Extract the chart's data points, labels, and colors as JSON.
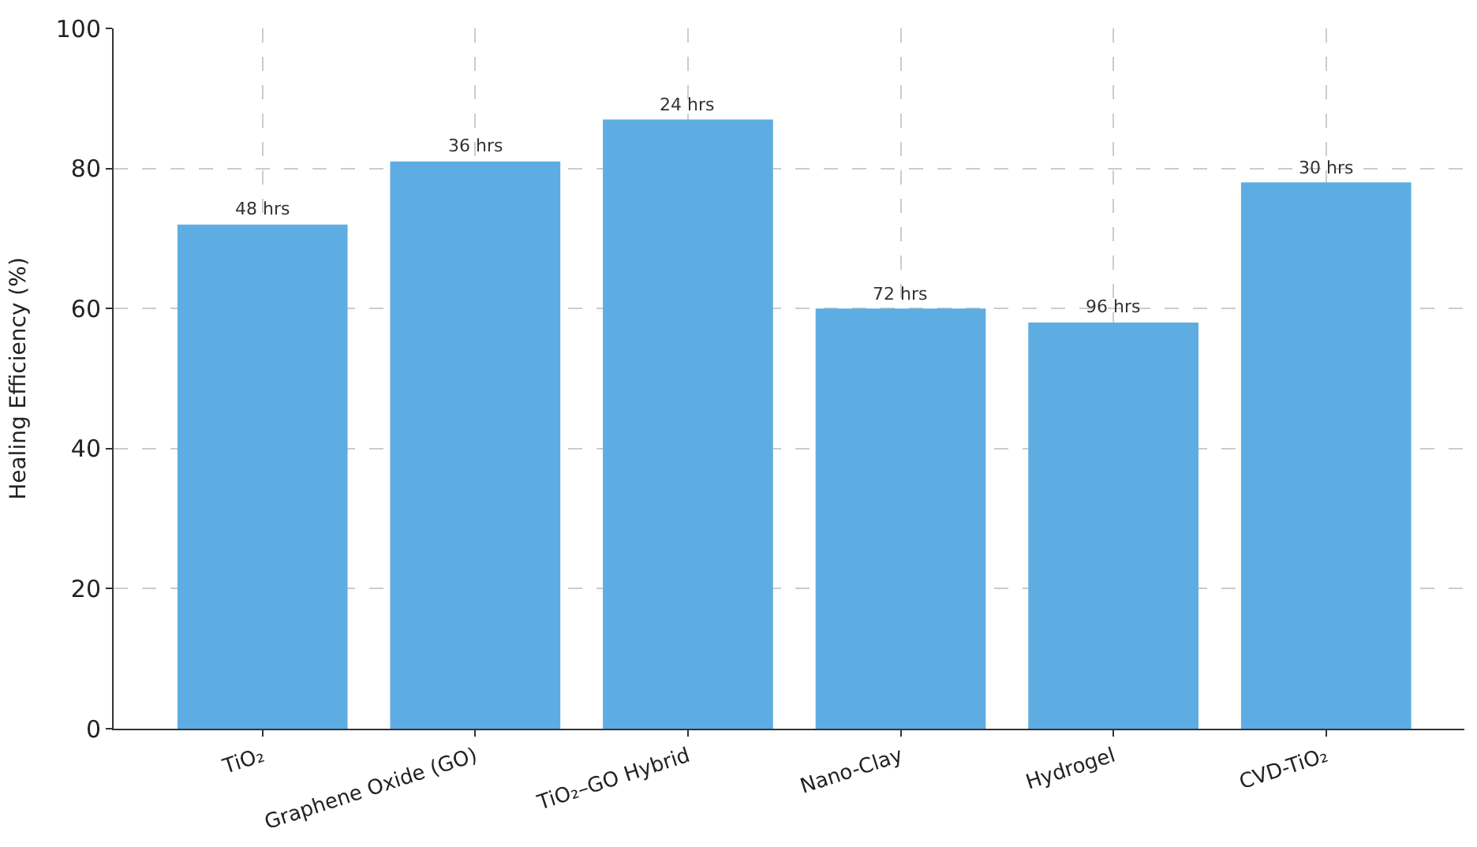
{
  "chart_data": {
    "type": "bar",
    "ylabel": "Healing Efficiency (%)",
    "categories": [
      "TiO₂",
      "Graphene Oxide (GO)",
      "TiO₂–GO Hybrid",
      "Nano-Clay",
      "Hydrogel",
      "CVD-TiO₂"
    ],
    "values": [
      72,
      81,
      87,
      60,
      58,
      78
    ],
    "annotations": [
      {
        "text": "48 hrs",
        "x": "TiO₂",
        "y": 72
      },
      {
        "text": "36 hrs",
        "x": "Graphene Oxide (GO)",
        "y": 81
      },
      {
        "text": "24 hrs",
        "x": "TiO₂–GO Hybrid",
        "y": 87
      },
      {
        "text": "72 hrs",
        "x": "Nano-Clay",
        "y": 60
      },
      {
        "text": "96 hrs",
        "x": "Hydrogel",
        "y": 58
      },
      {
        "text": "30 hrs",
        "x": "CVD-TiO₂",
        "y": 78
      }
    ],
    "color": "#5dade2",
    "ylim": [
      0,
      100
    ],
    "yticks": [
      0,
      20,
      40,
      60,
      80,
      100
    ],
    "grid": true
  }
}
